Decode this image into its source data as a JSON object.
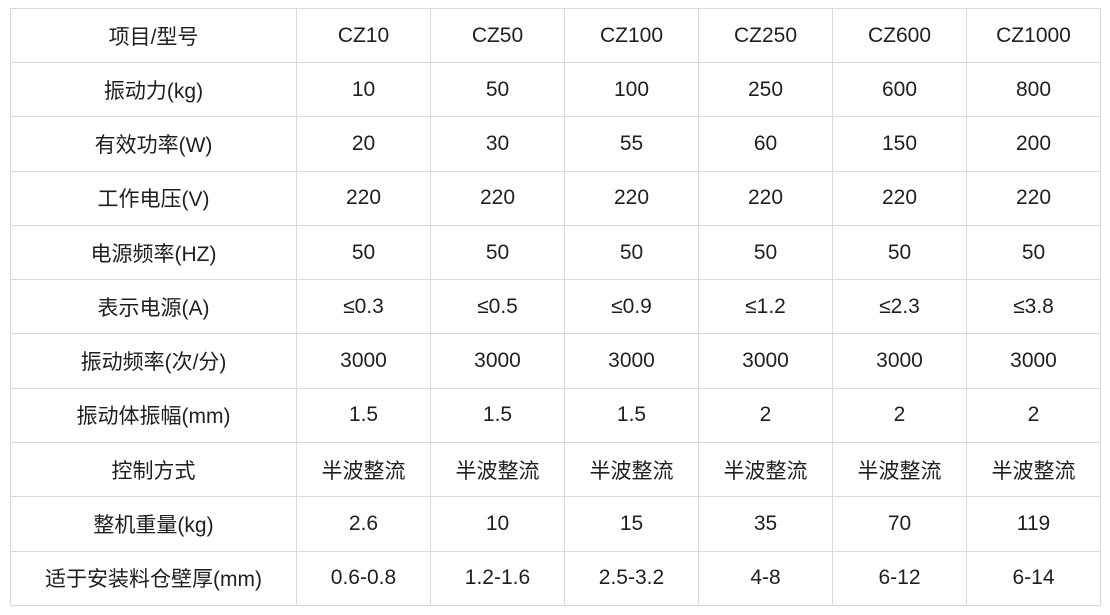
{
  "styles": {
    "border_color": "#d9d9d9",
    "text_color": "#1f1f1f",
    "background": "#ffffff"
  },
  "chart_data": {
    "type": "table",
    "columns": [
      "项目/型号",
      "CZ10",
      "CZ50",
      "CZ100",
      "CZ250",
      "CZ600",
      "CZ1000"
    ],
    "rows": [
      [
        "振动力(kg)",
        "10",
        "50",
        "100",
        "250",
        "600",
        "800"
      ],
      [
        "有效功率(W)",
        "20",
        "30",
        "55",
        "60",
        "150",
        "200"
      ],
      [
        "工作电压(V)",
        "220",
        "220",
        "220",
        "220",
        "220",
        "220"
      ],
      [
        "电源频率(HZ)",
        "50",
        "50",
        "50",
        "50",
        "50",
        "50"
      ],
      [
        "表示电源(A)",
        "≤0.3",
        "≤0.5",
        "≤0.9",
        "≤1.2",
        "≤2.3",
        "≤3.8"
      ],
      [
        "振动频率(次/分)",
        "3000",
        "3000",
        "3000",
        "3000",
        "3000",
        "3000"
      ],
      [
        "振动体振幅(mm)",
        "1.5",
        "1.5",
        "1.5",
        "2",
        "2",
        "2"
      ],
      [
        "控制方式",
        "半波整流",
        "半波整流",
        "半波整流",
        "半波整流",
        "半波整流",
        "半波整流"
      ],
      [
        "整机重量(kg)",
        "2.6",
        "10",
        "15",
        "35",
        "70",
        "119"
      ],
      [
        "适于安装料仓壁厚(mm)",
        "0.6-0.8",
        "1.2-1.6",
        "2.5-3.2",
        "4-8",
        "6-12",
        "6-14"
      ]
    ]
  }
}
